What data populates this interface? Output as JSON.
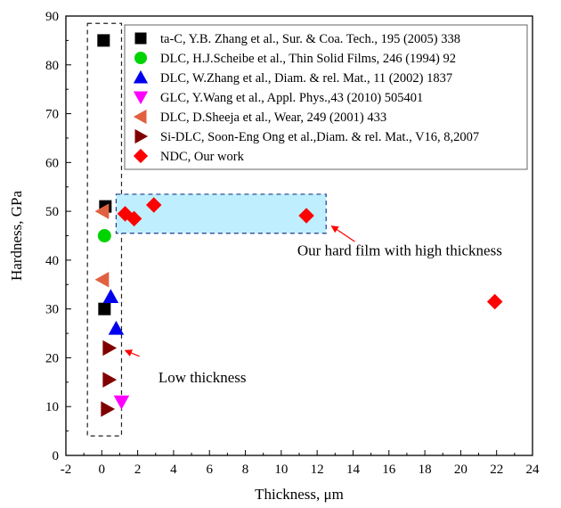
{
  "chart_data": {
    "type": "scatter",
    "xlabel": "Thickness, μm",
    "ylabel": "Hardness, GPa",
    "xlim": [
      -2,
      24
    ],
    "ylim": [
      0,
      90
    ],
    "xticks": [
      -2,
      0,
      2,
      4,
      6,
      8,
      10,
      12,
      14,
      16,
      18,
      20,
      22,
      24
    ],
    "yticks": [
      0,
      10,
      20,
      30,
      40,
      50,
      60,
      70,
      80,
      90
    ],
    "grid": false,
    "legend_position": "top-right",
    "series": [
      {
        "name": "ta-C, Y.B. Zhang et al., Sur. & Coa. Tech., 195 (2005) 338",
        "marker": "square",
        "color": "#000000",
        "points": [
          {
            "x": 0.1,
            "y": 85
          },
          {
            "x": 0.2,
            "y": 51
          },
          {
            "x": 0.15,
            "y": 30
          }
        ]
      },
      {
        "name": "DLC, H.J.Scheibe et al., Thin Solid Films, 246 (1994) 92",
        "marker": "circle",
        "color": "#00d400",
        "points": [
          {
            "x": 0.15,
            "y": 45
          }
        ]
      },
      {
        "name": "DLC, W.Zhang et al., Diam. & rel. Mat., 11 (2002) 1837",
        "marker": "triangle-up",
        "color": "#0000ee",
        "points": [
          {
            "x": 0.5,
            "y": 32.5
          },
          {
            "x": 0.8,
            "y": 26
          }
        ]
      },
      {
        "name": "GLC, Y.Wang et al., Appl. Phys.,43 (2010) 505401",
        "marker": "triangle-down",
        "color": "#ff00ff",
        "points": [
          {
            "x": 1.1,
            "y": 11
          }
        ]
      },
      {
        "name": "DLC, D.Sheeja et al., Wear, 249 (2001) 433",
        "marker": "triangle-left",
        "color": "#e06040",
        "points": [
          {
            "x": 0.05,
            "y": 50
          },
          {
            "x": 0.05,
            "y": 36
          }
        ]
      },
      {
        "name": "Si-DLC, Soon-Eng Ong et al.,Diam. & rel. Mat., V16, 8,2007",
        "marker": "triangle-right",
        "color": "#800000",
        "points": [
          {
            "x": 0.4,
            "y": 22
          },
          {
            "x": 0.4,
            "y": 15.5
          },
          {
            "x": 0.3,
            "y": 9.5
          }
        ]
      },
      {
        "name": "NDC, Our work",
        "marker": "diamond",
        "color": "#ff0000",
        "points": [
          {
            "x": 1.3,
            "y": 49.5
          },
          {
            "x": 1.8,
            "y": 48.5
          },
          {
            "x": 2.9,
            "y": 51.3
          },
          {
            "x": 11.4,
            "y": 49.1
          },
          {
            "x": 21.9,
            "y": 31.5
          }
        ]
      }
    ],
    "annotations": [
      {
        "text": "Our hard film with high thickness",
        "text_at": [
          16.6,
          41
        ],
        "arrow_from": [
          14.1,
          43.8
        ],
        "arrow_to": [
          12.8,
          47
        ]
      },
      {
        "text": "Low thickness",
        "text_at": [
          5.6,
          15
        ],
        "arrow_from": [
          2.1,
          20.3
        ],
        "arrow_to": [
          1.3,
          21.5
        ]
      }
    ],
    "boxes": [
      {
        "kind": "dashed-outline",
        "x_range": [
          -0.8,
          1.1
        ],
        "y_range": [
          4,
          88.5
        ]
      },
      {
        "kind": "shaded-dashed",
        "x_range": [
          0.8,
          12.5
        ],
        "y_range": [
          45.5,
          53.5
        ],
        "color": "#bfefff"
      }
    ]
  }
}
